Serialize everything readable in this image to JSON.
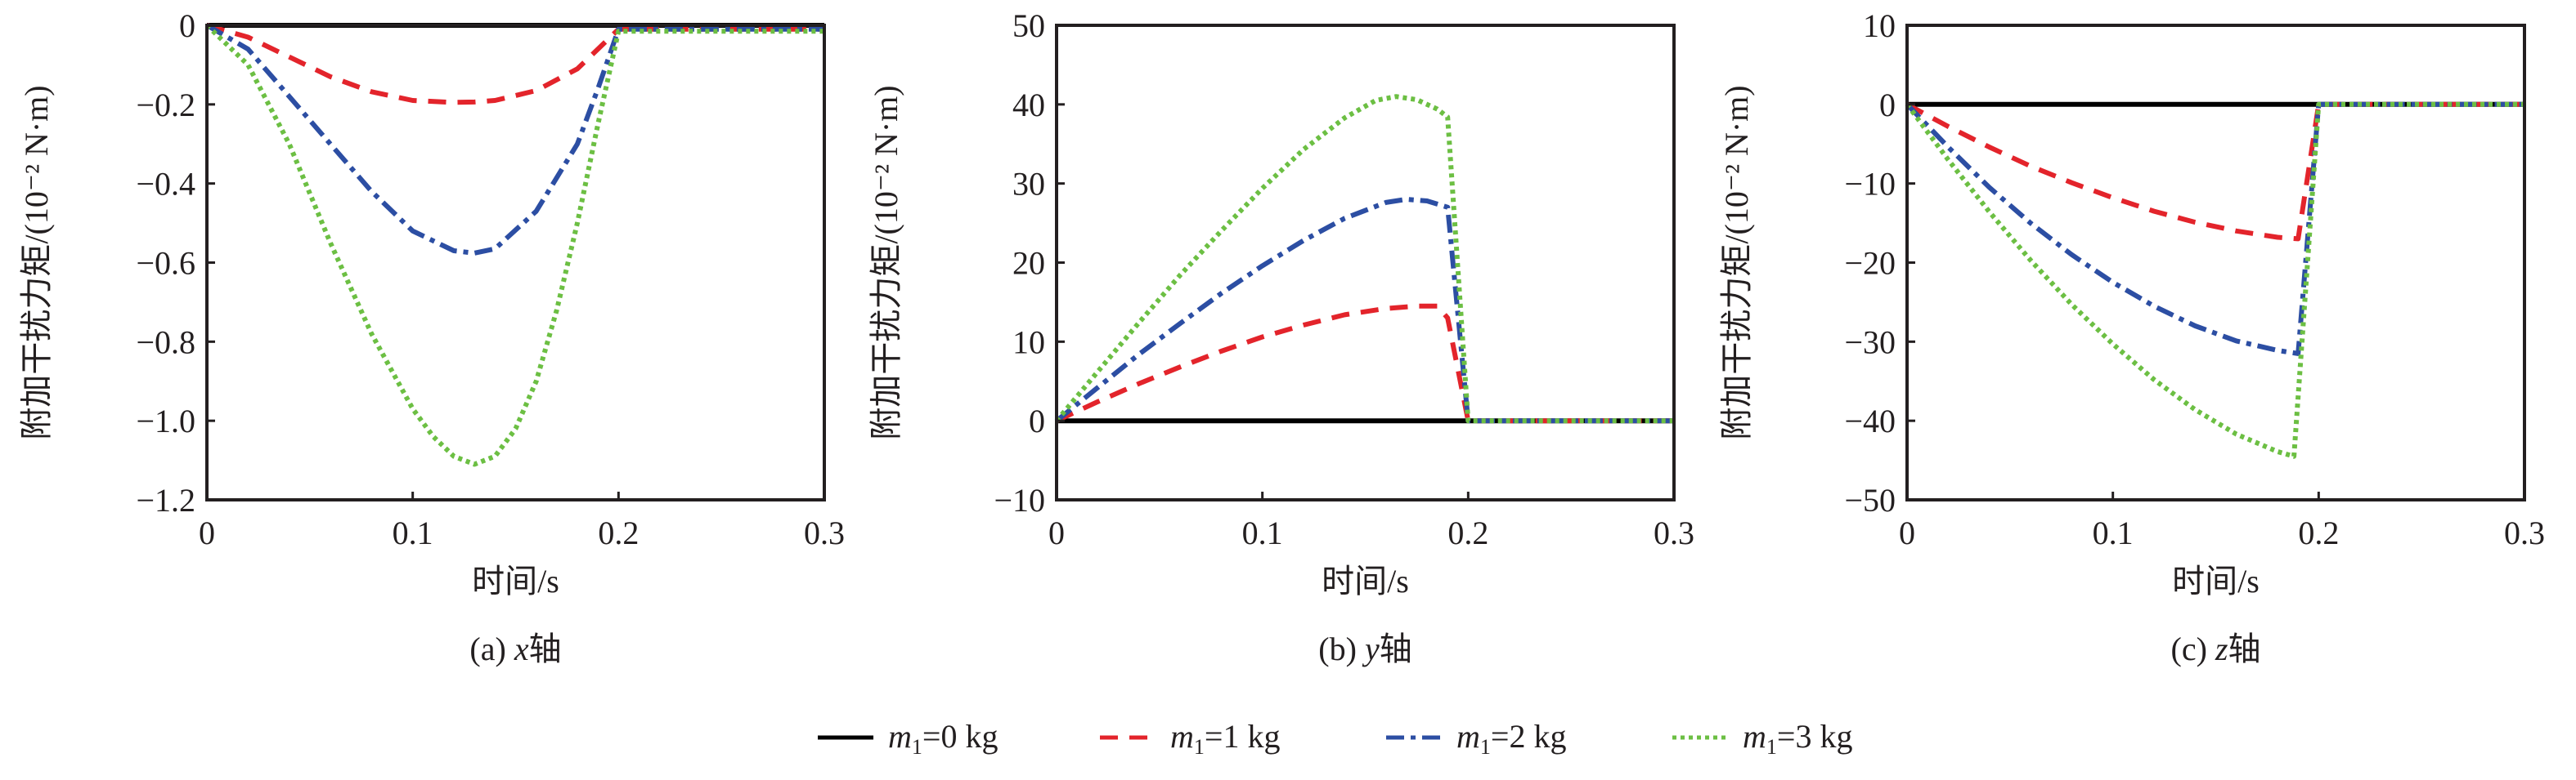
{
  "figure": {
    "legend": [
      {
        "symbol": "m",
        "subscript": "1",
        "rest": "=0 kg",
        "color": "#000000",
        "style": "solid"
      },
      {
        "symbol": "m",
        "subscript": "1",
        "rest": "=1 kg",
        "color": "#e3242b",
        "style": "dashed"
      },
      {
        "symbol": "m",
        "subscript": "1",
        "rest": "=2 kg",
        "color": "#2c4ea3",
        "style": "dashdot"
      },
      {
        "symbol": "m",
        "subscript": "1",
        "rest": "=3 kg",
        "color": "#6cbf43",
        "style": "dotted"
      }
    ]
  },
  "chart_data": [
    {
      "type": "line",
      "caption_prefix": "(a) ",
      "caption_axis": "x",
      "caption_suffix": "轴",
      "xlabel": "时间/s",
      "ylabel": "附加干扰力矩/(10⁻² N·m)",
      "xlim": [
        0,
        0.3
      ],
      "ylim": [
        -1.2,
        0
      ],
      "xticks": [
        0,
        0.1,
        0.2,
        0.3
      ],
      "xtick_labels": [
        "0",
        "0.1",
        "0.2",
        "0.3"
      ],
      "yticks": [
        -1.2,
        -1.0,
        -0.8,
        -0.6,
        -0.4,
        -0.2,
        0
      ],
      "ytick_labels": [
        "−1.2",
        "−1.0",
        "−0.8",
        "−0.6",
        "−0.4",
        "−0.2",
        "0"
      ],
      "grid": false,
      "series": [
        {
          "name": "m1=0 kg",
          "x": [
            0,
            0.2,
            0.3
          ],
          "y": [
            0,
            0,
            0
          ]
        },
        {
          "name": "m1=1 kg",
          "x": [
            0,
            0.02,
            0.04,
            0.06,
            0.08,
            0.1,
            0.12,
            0.13,
            0.14,
            0.16,
            0.18,
            0.19,
            0.2,
            0.25,
            0.3
          ],
          "y": [
            0,
            -0.03,
            -0.08,
            -0.13,
            -0.168,
            -0.19,
            -0.195,
            -0.194,
            -0.19,
            -0.165,
            -0.11,
            -0.06,
            -0.01,
            -0.01,
            -0.01
          ]
        },
        {
          "name": "m1=2 kg",
          "x": [
            0,
            0.02,
            0.04,
            0.06,
            0.08,
            0.1,
            0.12,
            0.13,
            0.14,
            0.16,
            0.18,
            0.19,
            0.2,
            0.25,
            0.3
          ],
          "y": [
            0,
            -0.06,
            -0.18,
            -0.3,
            -0.42,
            -0.52,
            -0.57,
            -0.576,
            -0.565,
            -0.47,
            -0.3,
            -0.16,
            -0.01,
            -0.01,
            -0.01
          ]
        },
        {
          "name": "m1=3 kg",
          "x": [
            0,
            0.02,
            0.04,
            0.06,
            0.08,
            0.1,
            0.11,
            0.12,
            0.13,
            0.14,
            0.15,
            0.16,
            0.17,
            0.18,
            0.19,
            0.2,
            0.25,
            0.3
          ],
          "y": [
            0,
            -0.1,
            -0.3,
            -0.55,
            -0.78,
            -0.97,
            -1.04,
            -1.09,
            -1.11,
            -1.09,
            -1.02,
            -0.9,
            -0.72,
            -0.5,
            -0.25,
            -0.015,
            -0.015,
            -0.015
          ]
        }
      ]
    },
    {
      "type": "line",
      "caption_prefix": "(b) ",
      "caption_axis": "y",
      "caption_suffix": "轴",
      "xlabel": "时间/s",
      "ylabel": "附加干扰力矩/(10⁻² N·m)",
      "xlim": [
        0,
        0.3
      ],
      "ylim": [
        -10,
        50
      ],
      "xticks": [
        0,
        0.1,
        0.2,
        0.3
      ],
      "xtick_labels": [
        "0",
        "0.1",
        "0.2",
        "0.3"
      ],
      "yticks": [
        -10,
        0,
        10,
        20,
        30,
        40,
        50
      ],
      "ytick_labels": [
        "−10",
        "0",
        "10",
        "20",
        "30",
        "40",
        "50"
      ],
      "grid": false,
      "series": [
        {
          "name": "m1=0 kg",
          "x": [
            0,
            0.2,
            0.3
          ],
          "y": [
            0,
            0,
            0
          ]
        },
        {
          "name": "m1=1 kg",
          "x": [
            0,
            0.02,
            0.04,
            0.06,
            0.08,
            0.1,
            0.12,
            0.14,
            0.16,
            0.175,
            0.185,
            0.19,
            0.2,
            0.25,
            0.3
          ],
          "y": [
            0,
            2.4,
            4.7,
            6.8,
            8.8,
            10.6,
            12.1,
            13.4,
            14.2,
            14.5,
            14.5,
            13.0,
            0,
            0,
            0
          ]
        },
        {
          "name": "m1=2 kg",
          "x": [
            0,
            0.02,
            0.04,
            0.06,
            0.08,
            0.1,
            0.12,
            0.14,
            0.16,
            0.17,
            0.18,
            0.19,
            0.2,
            0.25,
            0.3
          ],
          "y": [
            0,
            4.2,
            8.4,
            12.3,
            16.1,
            19.6,
            22.8,
            25.6,
            27.6,
            28.0,
            27.8,
            27.0,
            0,
            0,
            0
          ]
        },
        {
          "name": "m1=3 kg",
          "x": [
            0,
            0.02,
            0.04,
            0.06,
            0.08,
            0.1,
            0.12,
            0.14,
            0.155,
            0.165,
            0.175,
            0.185,
            0.19,
            0.2,
            0.25,
            0.3
          ],
          "y": [
            0,
            6.2,
            12.4,
            18.4,
            24.0,
            29.4,
            34.3,
            38.3,
            40.5,
            41.0,
            40.6,
            39.4,
            38.4,
            0,
            0,
            0
          ]
        }
      ]
    },
    {
      "type": "line",
      "caption_prefix": "(c) ",
      "caption_axis": "z",
      "caption_suffix": "轴",
      "xlabel": "时间/s",
      "ylabel": "附加干扰力矩/(10⁻² N·m)",
      "xlim": [
        0,
        0.3
      ],
      "ylim": [
        -50,
        10
      ],
      "xticks": [
        0,
        0.1,
        0.2,
        0.3
      ],
      "xtick_labels": [
        "0",
        "0.1",
        "0.2",
        "0.3"
      ],
      "yticks": [
        -50,
        -40,
        -30,
        -20,
        -10,
        0,
        10
      ],
      "ytick_labels": [
        "−50",
        "−40",
        "−30",
        "−20",
        "−10",
        "0",
        "10"
      ],
      "grid": false,
      "series": [
        {
          "name": "m1=0 kg",
          "x": [
            0,
            0.2,
            0.3
          ],
          "y": [
            0,
            0,
            0
          ]
        },
        {
          "name": "m1=1 kg",
          "x": [
            0,
            0.02,
            0.04,
            0.06,
            0.08,
            0.1,
            0.12,
            0.14,
            0.16,
            0.18,
            0.19,
            0.2,
            0.25,
            0.3
          ],
          "y": [
            0,
            -2.8,
            -5.4,
            -7.8,
            -9.9,
            -11.8,
            -13.5,
            -14.9,
            -16.0,
            -16.8,
            -17.0,
            0,
            0,
            0
          ]
        },
        {
          "name": "m1=2 kg",
          "x": [
            0,
            0.02,
            0.04,
            0.06,
            0.08,
            0.1,
            0.12,
            0.14,
            0.16,
            0.18,
            0.19,
            0.2,
            0.25,
            0.3
          ],
          "y": [
            0,
            -5.4,
            -10.5,
            -15.0,
            -19.0,
            -22.5,
            -25.5,
            -28.0,
            -29.9,
            -31.1,
            -31.5,
            0,
            0,
            0
          ]
        },
        {
          "name": "m1=3 kg",
          "x": [
            0,
            0.02,
            0.04,
            0.06,
            0.08,
            0.1,
            0.12,
            0.14,
            0.16,
            0.18,
            0.188,
            0.2,
            0.25,
            0.3
          ],
          "y": [
            0,
            -7.0,
            -13.6,
            -19.7,
            -25.3,
            -30.3,
            -34.8,
            -38.6,
            -41.7,
            -43.9,
            -44.5,
            0,
            0,
            0
          ]
        }
      ]
    }
  ]
}
